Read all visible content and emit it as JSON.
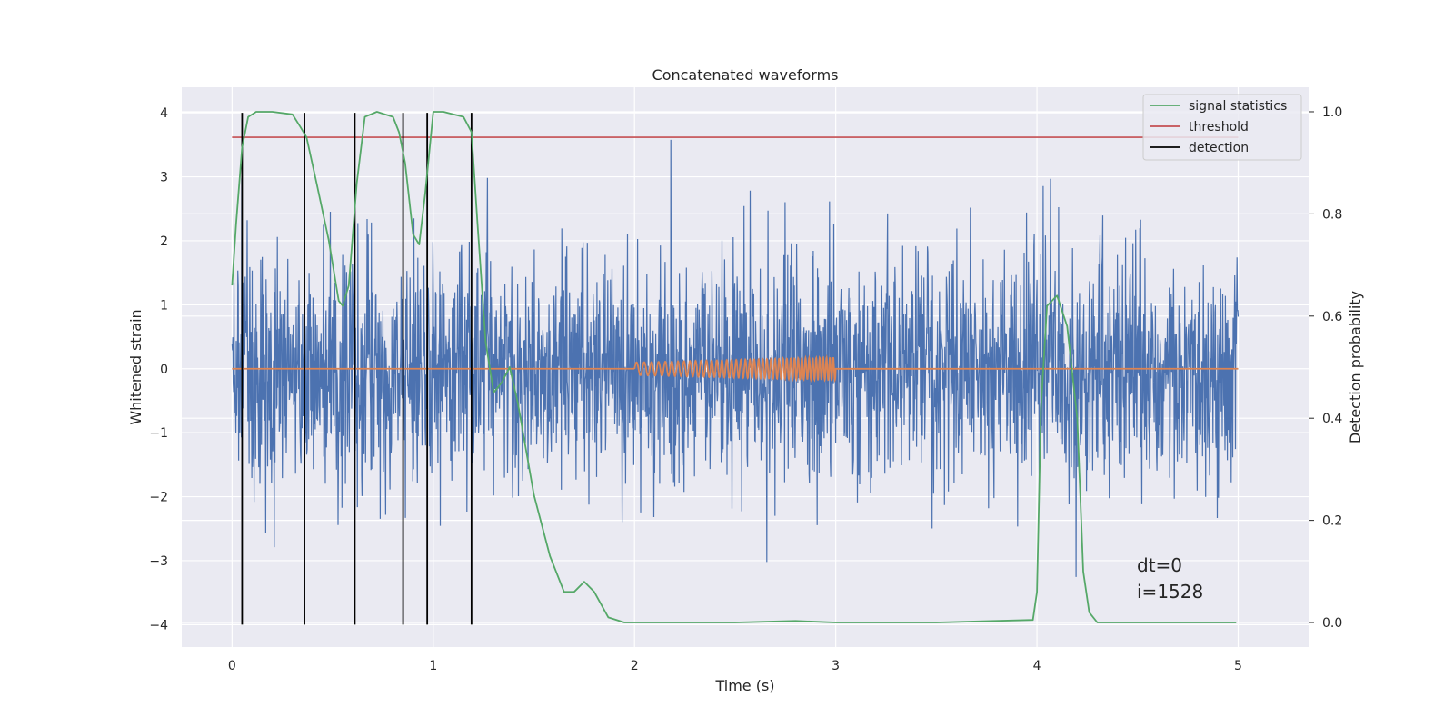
{
  "chart_data": {
    "type": "line",
    "title": "Concatenated waveforms",
    "xlabel": "Time (s)",
    "ylabel": "Whitened strain",
    "y2label": "Detection probability",
    "xlim": [
      -0.25,
      5.35
    ],
    "ylim": [
      -4.35,
      4.4
    ],
    "y2lim": [
      -0.048,
      1.048
    ],
    "xticks": [
      0,
      1,
      2,
      3,
      4,
      5
    ],
    "yticks": [
      -4,
      -3,
      -2,
      -1,
      0,
      1,
      2,
      3,
      4
    ],
    "y2ticks": [
      0.0,
      0.2,
      0.4,
      0.6,
      0.8,
      1.0
    ],
    "y2tick_labels": [
      "0.0",
      "0.2",
      "0.4",
      "0.6",
      "0.8",
      "1.0"
    ],
    "grid": true,
    "legend_position": "top-right",
    "colors": {
      "strain": "#4c72b0",
      "template": "#dd8452",
      "signal_statistics": "#55a868",
      "threshold": "#c44e52",
      "detection": "#000000",
      "axes_background": "#eaeaf2",
      "grid": "#ffffff"
    },
    "legend": [
      {
        "label": "signal statistics",
        "color": "#55a868"
      },
      {
        "label": "threshold",
        "color": "#c44e52"
      },
      {
        "label": "detection",
        "color": "#000000"
      }
    ],
    "series": [
      {
        "name": "signal statistics",
        "axis": "right",
        "x": [
          0,
          0.02,
          0.05,
          0.08,
          0.12,
          0.2,
          0.3,
          0.34,
          0.37,
          0.42,
          0.48,
          0.53,
          0.55,
          0.58,
          0.62,
          0.66,
          0.72,
          0.8,
          0.83,
          0.86,
          0.9,
          0.93,
          0.96,
          1.0,
          1.05,
          1.15,
          1.19,
          1.22,
          1.26,
          1.3,
          1.34,
          1.38,
          1.42,
          1.5,
          1.58,
          1.65,
          1.7,
          1.75,
          1.8,
          1.87,
          1.95,
          2.5,
          2.8,
          3.0,
          3.5,
          3.98,
          4.0,
          4.02,
          4.05,
          4.1,
          4.15,
          4.2,
          4.23,
          4.26,
          4.3,
          4.5,
          4.99
        ],
        "y": [
          0.66,
          0.78,
          0.93,
          0.99,
          1.0,
          1.0,
          0.995,
          0.97,
          0.95,
          0.86,
          0.75,
          0.63,
          0.62,
          0.66,
          0.86,
          0.99,
          1.0,
          0.99,
          0.96,
          0.9,
          0.76,
          0.74,
          0.84,
          1.0,
          1.0,
          0.99,
          0.96,
          0.78,
          0.55,
          0.45,
          0.47,
          0.5,
          0.43,
          0.25,
          0.13,
          0.06,
          0.06,
          0.08,
          0.06,
          0.01,
          0.0,
          0.0,
          0.003,
          0.0,
          0.0,
          0.005,
          0.06,
          0.42,
          0.62,
          0.64,
          0.58,
          0.4,
          0.1,
          0.02,
          0.0,
          0.0,
          0.0
        ]
      },
      {
        "name": "threshold",
        "axis": "right",
        "x": [
          0,
          5
        ],
        "y": [
          0.95,
          0.95
        ]
      },
      {
        "name": "detection",
        "axis": "left",
        "x": [
          0.05,
          0.36,
          0.61,
          0.85,
          0.97,
          1.19
        ],
        "y_range": [
          -4,
          4
        ]
      },
      {
        "name": "template",
        "axis": "left",
        "x_range": [
          2.0,
          3.0
        ],
        "amplitude_range": [
          0.1,
          0.18
        ],
        "baseline": 0
      }
    ],
    "annotations": [
      "dt=0",
      "i=1528"
    ]
  }
}
